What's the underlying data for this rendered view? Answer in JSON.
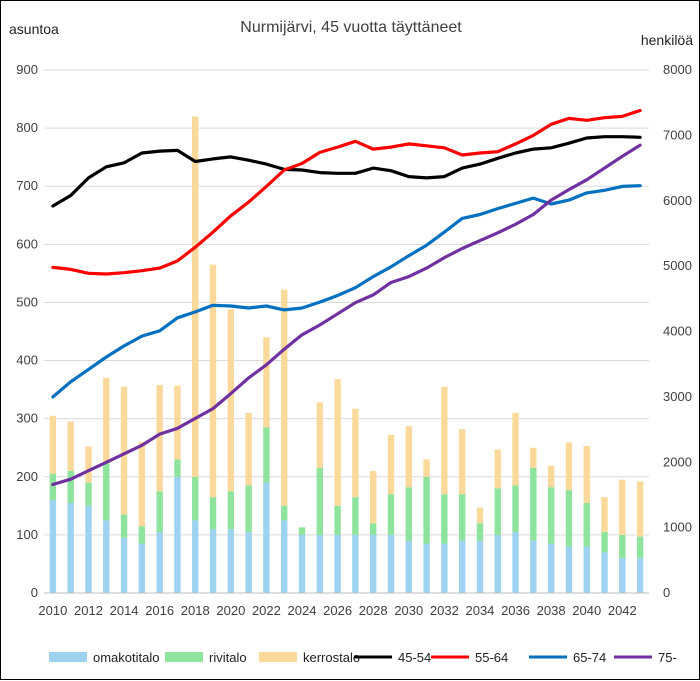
{
  "chart_data": {
    "type": "bar",
    "title": "Nurmijärvi,  45 vuotta täyttäneet",
    "y_left_label": "asuntoa",
    "y_right_label": "henkilöä",
    "y_left_lim": [
      0,
      900
    ],
    "y_left_ticks": [
      "0",
      "100",
      "200",
      "300",
      "400",
      "500",
      "600",
      "700",
      "800",
      "900"
    ],
    "y_right_lim": [
      0,
      8000
    ],
    "y_right_ticks": [
      "0",
      "1000",
      "2000",
      "3000",
      "4000",
      "5000",
      "6000",
      "7000",
      "8000"
    ],
    "grid": "horizontal",
    "legend_position": "bottom",
    "x": [
      2010,
      2011,
      2012,
      2013,
      2014,
      2015,
      2016,
      2017,
      2018,
      2019,
      2020,
      2021,
      2022,
      2023,
      2024,
      2025,
      2026,
      2027,
      2028,
      2029,
      2030,
      2031,
      2032,
      2033,
      2034,
      2035,
      2036,
      2037,
      2038,
      2039,
      2040,
      2041,
      2042,
      2043
    ],
    "x_tick_labels": [
      "2010",
      "2012",
      "2014",
      "2016",
      "2018",
      "2020",
      "2022",
      "2024",
      "2026",
      "2028",
      "2030",
      "2032",
      "2034",
      "2036",
      "2038",
      "2040",
      "2042"
    ],
    "bar_series": [
      {
        "name": "omakotitalo",
        "color": "#9dd3f0",
        "values": [
          160,
          155,
          150,
          125,
          95,
          85,
          105,
          200,
          125,
          110,
          110,
          105,
          190,
          125,
          100,
          100,
          100,
          100,
          100,
          100,
          90,
          85,
          85,
          90,
          90,
          100,
          105,
          90,
          85,
          80,
          80,
          70,
          60,
          60
        ]
      },
      {
        "name": "rivitalo",
        "color": "#8ee39d",
        "values": [
          45,
          55,
          40,
          100,
          40,
          30,
          70,
          30,
          75,
          55,
          65,
          80,
          95,
          25,
          13,
          115,
          50,
          65,
          20,
          70,
          92,
          115,
          85,
          80,
          30,
          80,
          80,
          125,
          97,
          97,
          75,
          35,
          40,
          37
        ]
      },
      {
        "name": "kerrostalo",
        "color": "#fbd99b",
        "values": [
          100,
          85,
          62,
          145,
          220,
          145,
          183,
          127,
          620,
          400,
          313,
          125,
          155,
          372,
          0,
          113,
          218,
          152,
          90,
          102,
          105,
          30,
          185,
          112,
          27,
          67,
          125,
          35,
          37,
          82,
          98,
          60,
          95,
          95
        ]
      }
    ],
    "line_series": [
      {
        "name": "45-54",
        "color": "#000000",
        "values": [
          5920,
          6080,
          6350,
          6520,
          6580,
          6730,
          6760,
          6770,
          6600,
          6640,
          6670,
          6620,
          6560,
          6480,
          6470,
          6430,
          6420,
          6420,
          6500,
          6460,
          6370,
          6350,
          6370,
          6500,
          6560,
          6650,
          6730,
          6790,
          6810,
          6880,
          6960,
          6980,
          6980,
          6970
        ]
      },
      {
        "name": "55-64",
        "color": "#ff0000",
        "values": [
          4980,
          4950,
          4890,
          4880,
          4900,
          4930,
          4970,
          5080,
          5290,
          5520,
          5770,
          5980,
          6220,
          6470,
          6570,
          6740,
          6820,
          6910,
          6790,
          6820,
          6870,
          6840,
          6810,
          6700,
          6730,
          6750,
          6870,
          7000,
          7170,
          7260,
          7230,
          7270,
          7290,
          7380
        ]
      },
      {
        "name": "65-74",
        "color": "#0070c0",
        "values": [
          3000,
          3230,
          3420,
          3610,
          3780,
          3930,
          4010,
          4210,
          4300,
          4400,
          4390,
          4360,
          4390,
          4330,
          4360,
          4450,
          4550,
          4670,
          4840,
          4990,
          5160,
          5320,
          5520,
          5730,
          5790,
          5880,
          5960,
          6040,
          5950,
          6010,
          6120,
          6160,
          6220,
          6230
        ]
      },
      {
        "name": "75-",
        "color": "#7030a0",
        "values": [
          1660,
          1740,
          1870,
          2000,
          2130,
          2260,
          2430,
          2520,
          2670,
          2820,
          3050,
          3290,
          3490,
          3730,
          3950,
          4100,
          4270,
          4440,
          4560,
          4750,
          4840,
          4970,
          5130,
          5270,
          5390,
          5510,
          5640,
          5790,
          6010,
          6170,
          6320,
          6500,
          6680,
          6850
        ]
      }
    ]
  }
}
